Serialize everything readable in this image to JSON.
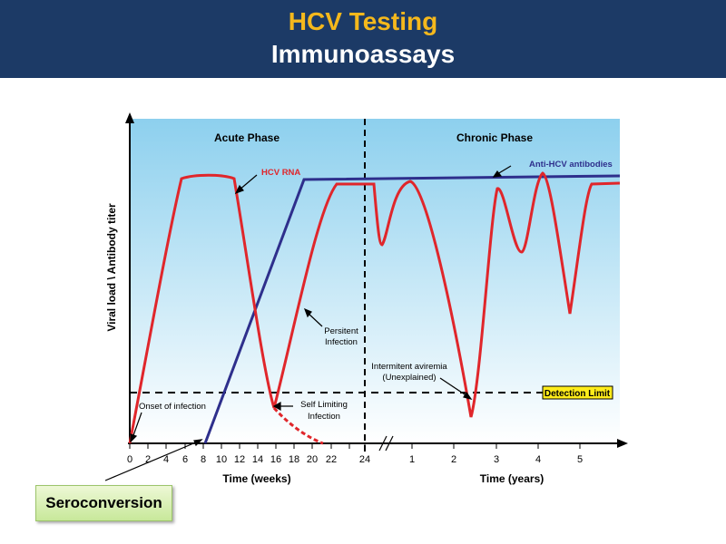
{
  "header": {
    "title": "HCV Testing",
    "subtitle": "Immunoassays"
  },
  "chart": {
    "phases": {
      "acute": "Acute Phase",
      "chronic": "Chronic Phase"
    },
    "ylabel": "Viral load \\ Antibody titer",
    "xlabel_weeks": "Time (weeks)",
    "xlabel_years": "Time (years)",
    "week_ticks": [
      "0",
      "2",
      "4",
      "6",
      "8",
      "10",
      "12",
      "14",
      "16",
      "18",
      "20",
      "22",
      "24"
    ],
    "year_ticks": [
      "1",
      "2",
      "3",
      "4",
      "5"
    ],
    "labels": {
      "hcv_rna": "HCV RNA",
      "antibodies": "Anti-HCV antibodies",
      "persistent": [
        "Persitent",
        "Infection"
      ],
      "self_limiting": [
        "Self Limiting",
        "Infection"
      ],
      "onset": "Onset of infection",
      "aviremia": [
        "Intermitent aviremia",
        "(Unexplained)"
      ],
      "detection_limit": "Detection Limit"
    },
    "colors": {
      "rna": "#e0262b",
      "antibody": "#2e2f8c",
      "axis": "#000000",
      "detection_badge": "#ffec1a"
    }
  },
  "seroconversion": "Seroconversion"
}
